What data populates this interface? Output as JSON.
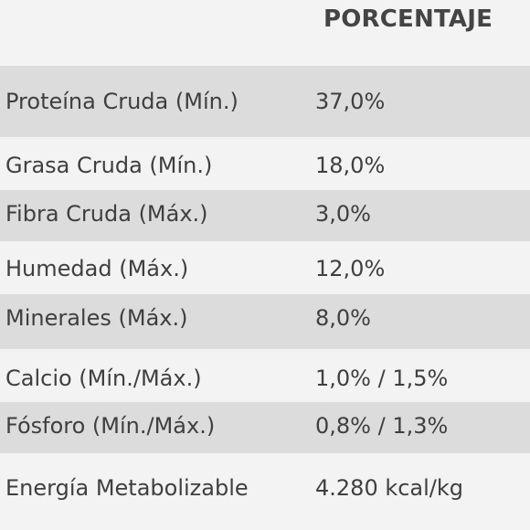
{
  "header": {
    "label": "PORCENTAJE"
  },
  "rows": [
    {
      "name": "Proteína Cruda (Mín.)",
      "value": "37,0%"
    },
    {
      "name": "Grasa Cruda (Mín.)",
      "value": "18,0%"
    },
    {
      "name": "Fibra Cruda (Máx.)",
      "value": "3,0%"
    },
    {
      "name": "Humedad (Máx.)",
      "value": "12,0%"
    },
    {
      "name": "Minerales (Máx.)",
      "value": "8,0%"
    },
    {
      "name": "Calcio (Mín./Máx.)",
      "value": "1,0% / 1,5%"
    },
    {
      "name": "Fósforo (Mín./Máx.)",
      "value": "0,8% / 1,3%"
    },
    {
      "name": "Energía Metabolizable",
      "value": "4.280 kcal/kg"
    }
  ]
}
